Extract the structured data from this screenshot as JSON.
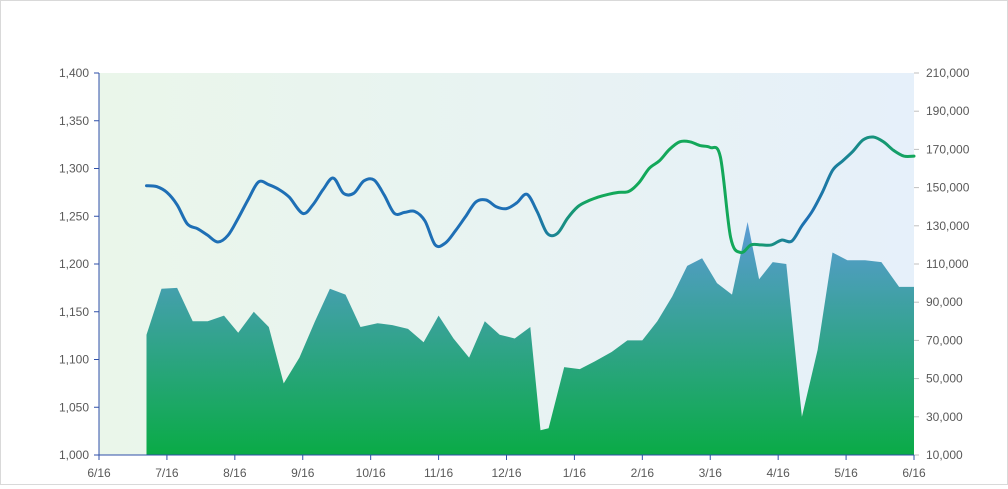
{
  "chart_data": {
    "type": "area+line",
    "title": "",
    "x_tick_labels": [
      "6/16",
      "7/16",
      "8/16",
      "9/16",
      "10/16",
      "11/16",
      "12/16",
      "1/16",
      "2/16",
      "3/16",
      "4/16",
      "5/16",
      "6/16"
    ],
    "y_left": {
      "min": 1000,
      "max": 1400,
      "step": 50,
      "tick_labels": [
        "1,000",
        "1,050",
        "1,100",
        "1,150",
        "1,200",
        "1,250",
        "1,300",
        "1,350",
        "1,400"
      ]
    },
    "y_right": {
      "min": 10000,
      "max": 210000,
      "step": 20000,
      "tick_labels": [
        "10,000",
        "30,000",
        "50,000",
        "70,000",
        "90,000",
        "110,000",
        "130,000",
        "150,000",
        "170,000",
        "190,000",
        "210,000"
      ]
    },
    "grid": false,
    "colors": {
      "area_top": "#5b9bd5",
      "area_bottom": "#0aab46",
      "line_blue": "#1e6fb5",
      "line_green": "#13a85a",
      "plot_bg_left": "#eaf6ea",
      "plot_bg_right": "#e6f0fa",
      "axis": "#2f4fa8"
    },
    "series": [
      {
        "type": "area",
        "axis": "right",
        "x": [
          0.7,
          0.92,
          1.15,
          1.38,
          1.6,
          1.84,
          2.05,
          2.28,
          2.5,
          2.72,
          2.95,
          3.18,
          3.4,
          3.63,
          3.85,
          4.1,
          4.32,
          4.55,
          4.78,
          5,
          5.22,
          5.45,
          5.68,
          5.9,
          6.12,
          6.35,
          6.5,
          6.62,
          6.85,
          7.08,
          7.3,
          7.55,
          7.78,
          8,
          8.22,
          8.44,
          8.66,
          8.88,
          9.1,
          9.32,
          9.55,
          9.72,
          9.92,
          10.12,
          10.35,
          10.58,
          10.8,
          11.02,
          11.28,
          11.52,
          11.78,
          12
        ],
        "values": [
          73000,
          97000,
          97500,
          80000,
          80000,
          83000,
          74000,
          85000,
          77000,
          47500,
          61000,
          80000,
          97000,
          94000,
          77000,
          79000,
          78000,
          76000,
          69000,
          83000,
          71000,
          61000,
          80000,
          73000,
          71000,
          77000,
          23000,
          24000,
          56000,
          55000,
          59000,
          64000,
          70000,
          70000,
          80000,
          93000,
          109000,
          113000,
          100000,
          94000,
          132000,
          102000,
          111000,
          110000,
          30000,
          65000,
          116000,
          112000,
          112000,
          111000,
          98000,
          98000
        ]
      },
      {
        "type": "line",
        "axis": "left",
        "x": [
          0.7,
          0.85,
          1,
          1.15,
          1.3,
          1.45,
          1.6,
          1.75,
          1.9,
          2.05,
          2.2,
          2.35,
          2.5,
          2.65,
          2.8,
          3,
          3.15,
          3.3,
          3.45,
          3.6,
          3.75,
          3.9,
          4.05,
          4.2,
          4.35,
          4.5,
          4.65,
          4.8,
          4.95,
          5.1,
          5.25,
          5.4,
          5.55,
          5.7,
          5.85,
          6,
          6.15,
          6.3,
          6.45,
          6.6,
          6.75,
          6.9,
          7.05,
          7.2,
          7.35,
          7.5,
          7.65,
          7.8,
          7.95,
          8.1,
          8.25,
          8.4,
          8.55,
          8.7,
          8.85,
          9,
          9.15,
          9.3,
          9.45,
          9.6,
          9.75,
          9.9,
          10.05,
          10.2,
          10.35,
          10.5,
          10.65,
          10.8,
          10.95,
          11.1,
          11.25,
          11.4,
          11.55,
          11.7,
          11.85,
          12
        ],
        "values": [
          1282,
          1281,
          1275,
          1262,
          1242,
          1237,
          1230,
          1223,
          1230,
          1248,
          1268,
          1286,
          1283,
          1278,
          1270,
          1253,
          1262,
          1278,
          1290,
          1274,
          1274,
          1287,
          1288,
          1272,
          1253,
          1254,
          1255,
          1245,
          1220,
          1222,
          1235,
          1250,
          1265,
          1267,
          1260,
          1258,
          1264,
          1273,
          1255,
          1232,
          1232,
          1248,
          1260,
          1266,
          1270,
          1273,
          1275,
          1276,
          1285,
          1300,
          1308,
          1320,
          1328,
          1328,
          1324,
          1322,
          1312,
          1228,
          1212,
          1220,
          1220,
          1220,
          1225,
          1224,
          1240,
          1255,
          1275,
          1298,
          1308,
          1318,
          1330,
          1333,
          1328,
          1319,
          1313,
          1313
        ]
      }
    ]
  }
}
